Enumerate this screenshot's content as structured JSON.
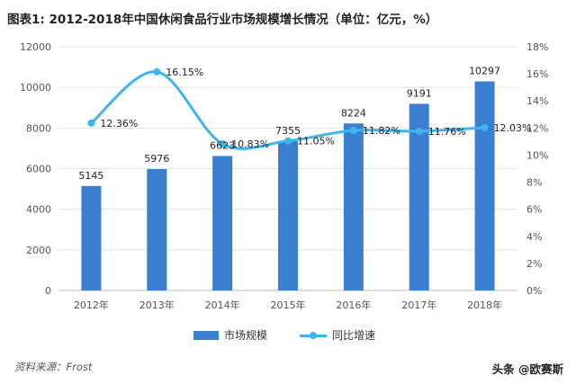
{
  "title": "图表1: 2012-2018年中国休闲食品行业市场规模增长情况（单位：亿元，%）",
  "source": "资料来源：Frost",
  "brand": "头条 @欧赛斯",
  "colors": {
    "bar": "#3b7fd0",
    "line": "#3cb6ee",
    "grid": "#e2e2e2",
    "axis_text": "#555555"
  },
  "chart_data": {
    "type": "bar",
    "categories": [
      "2012年",
      "2013年",
      "2014年",
      "2015年",
      "2016年",
      "2017年",
      "2018年"
    ],
    "series": [
      {
        "name": "市场规模",
        "type": "bar",
        "axis": "left",
        "values": [
          5145,
          5976,
          6623,
          7355,
          8224,
          9191,
          10297
        ],
        "labels": [
          "5145",
          "5976",
          "6623",
          "7355",
          "8224",
          "9191",
          "10297"
        ]
      },
      {
        "name": "同比增速",
        "type": "line",
        "axis": "right",
        "values": [
          12.36,
          16.15,
          10.83,
          11.05,
          11.82,
          11.76,
          12.03
        ],
        "labels": [
          "12.36%",
          "16.15%",
          "10.83%",
          "11.05%",
          "11.82%",
          "11.76%",
          "12.03%"
        ]
      }
    ],
    "y_left": {
      "ylim": [
        0,
        12000
      ],
      "ticks": [
        "0",
        "2000",
        "4000",
        "6000",
        "8000",
        "10000",
        "12000"
      ]
    },
    "y_right": {
      "ylim": [
        0,
        18
      ],
      "ticks": [
        "0%",
        "2%",
        "4%",
        "6%",
        "8%",
        "10%",
        "12%",
        "14%",
        "16%",
        "18%"
      ]
    },
    "grid": true,
    "legend": "bottom"
  }
}
